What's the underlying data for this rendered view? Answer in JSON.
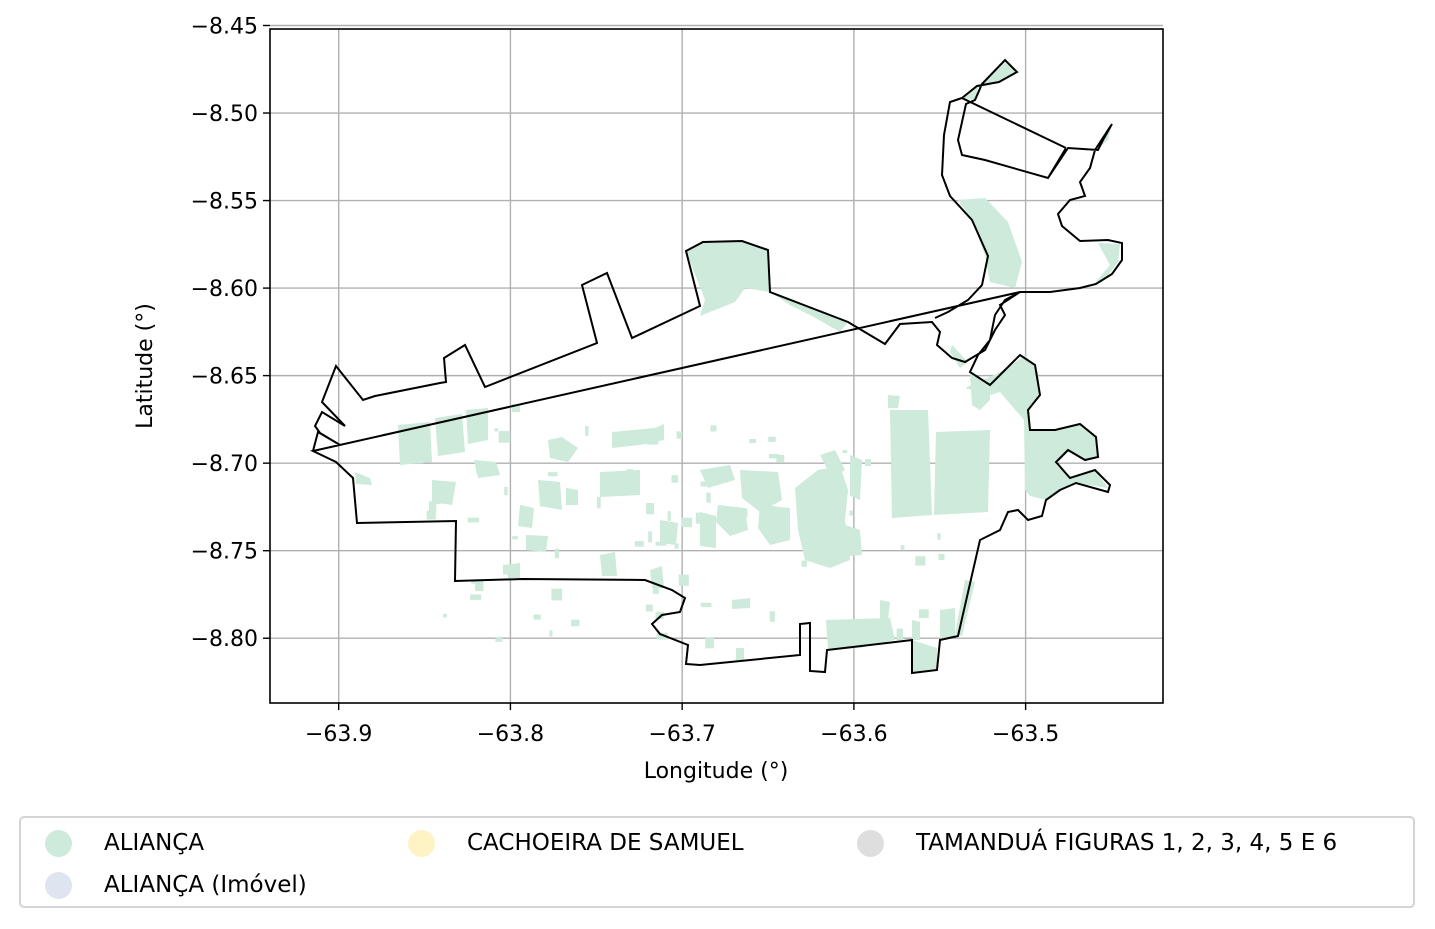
{
  "chart_data": {
    "type": "map",
    "xlabel": "Longitude (°)",
    "ylabel": "Latitude (°)",
    "xlim": [
      -63.94,
      -63.42
    ],
    "ylim": [
      -8.837,
      -8.452
    ],
    "xticks": [
      -63.9,
      -63.8,
      -63.7,
      -63.6,
      -63.5
    ],
    "xtick_labels": [
      "−63.9",
      "−63.8",
      "−63.7",
      "−63.6",
      "−63.5"
    ],
    "yticks": [
      -8.45,
      -8.5,
      -8.55,
      -8.6,
      -8.65,
      -8.7,
      -8.75,
      -8.8
    ],
    "ytick_labels": [
      "−8.45",
      "−8.50",
      "−8.55",
      "−8.60",
      "−8.65",
      "−8.70",
      "−8.75",
      "−8.80"
    ],
    "grid": true,
    "legend_position": "bottom",
    "colors": {
      "fill": "#cdeadb",
      "outline": "#000000",
      "grid": "#b0b0b0"
    },
    "legend": [
      {
        "label": "ALIANÇA",
        "color": "#cdeadb"
      },
      {
        "label": "ALIANÇA (Imóvel)",
        "color": "#dfe4f1"
      },
      {
        "label": "CACHOEIRA DE SAMUEL",
        "color": "#fdf3c5"
      },
      {
        "label": "TAMANDUÁ FIGURAS 1, 2, 3, 4, 5 E 6",
        "color": "#dedede"
      }
    ]
  }
}
